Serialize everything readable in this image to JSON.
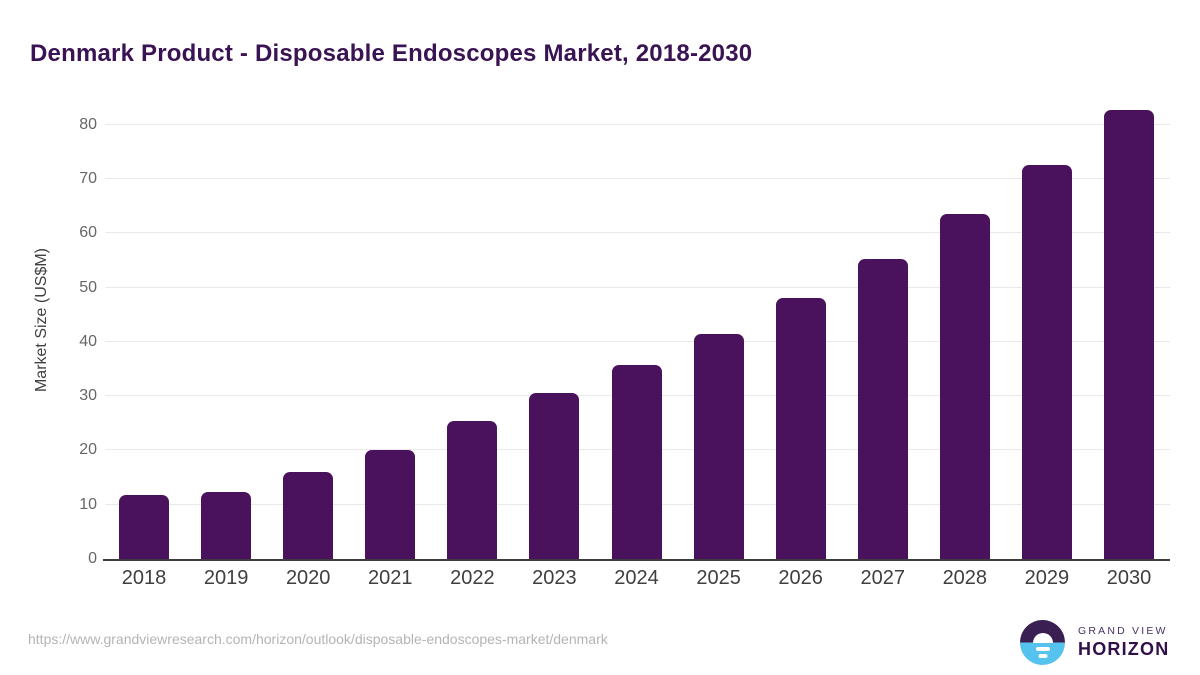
{
  "chart_data": {
    "type": "bar",
    "title": "Denmark Product - Disposable Endoscopes Market, 2018-2030",
    "categories": [
      "2018",
      "2019",
      "2020",
      "2021",
      "2022",
      "2023",
      "2024",
      "2025",
      "2026",
      "2027",
      "2028",
      "2029",
      "2030"
    ],
    "values": [
      11.7,
      12.3,
      16.0,
      20.0,
      25.5,
      30.5,
      35.7,
      41.5,
      48.0,
      55.2,
      63.5,
      72.5,
      82.7
    ],
    "xlabel": "",
    "ylabel": "Market Size (US$M)",
    "ylim": [
      0,
      82.7
    ],
    "y_ticks": [
      0,
      10,
      20,
      30,
      40,
      50,
      60,
      70,
      80
    ],
    "grid": "horizontal",
    "legend": "none",
    "bar_color": "#4a115c"
  },
  "colors": {
    "title": "#3a1353",
    "bar": "#4a115c",
    "gridline": "#e9e9e9",
    "axis_line": "#3d3d3d",
    "tick_text": "#666666",
    "xlabel_text": "#3f3f3f",
    "url_text": "#b4b4b4",
    "logo_purple": "#3a2052",
    "logo_blue": "#55c3ee"
  },
  "footer": {
    "source_url": "https://www.grandviewresearch.com/horizon/outlook/disposable-endoscopes-market/denmark",
    "logo": {
      "icon": "sunrise-horizon-icon",
      "line1": "GRAND VIEW",
      "line2": "HORIZON"
    }
  }
}
